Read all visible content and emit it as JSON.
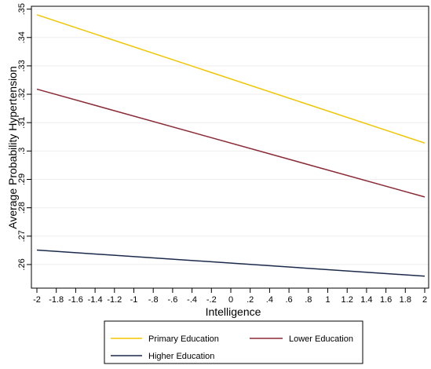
{
  "chart_data": {
    "type": "line",
    "title": "",
    "xlabel": "Intelligence",
    "ylabel": "Average Probability Hypertension",
    "xlim": [
      -2,
      2
    ],
    "ylim": [
      0.255,
      0.351
    ],
    "x_ticks": [
      -2,
      -1.8,
      -1.6,
      -1.4,
      -1.2,
      -1,
      -0.8,
      -0.6,
      -0.4,
      -0.2,
      0,
      0.2,
      0.4,
      0.6,
      0.8,
      1,
      1.2,
      1.4,
      1.6,
      1.8,
      2
    ],
    "x_tick_labels": [
      "-2",
      "-1.8",
      "-1.6",
      "-1.4",
      "-1.2",
      "-1",
      "-.8",
      "-.6",
      "-.4",
      "-.2",
      "0",
      ".2",
      ".4",
      ".6",
      ".8",
      "1",
      "1.2",
      "1.4",
      "1.6",
      "1.8",
      "2"
    ],
    "y_ticks": [
      0.26,
      0.27,
      0.28,
      0.29,
      0.3,
      0.31,
      0.32,
      0.33,
      0.34,
      0.35
    ],
    "y_tick_labels": [
      ".26",
      ".27",
      ".28",
      ".29",
      ".3",
      ".31",
      ".32",
      ".33",
      ".34",
      ".35"
    ],
    "grid": true,
    "legend_position": "bottom",
    "series": [
      {
        "name": "Primary Education",
        "color": "#f2c500",
        "x": [
          -2,
          2
        ],
        "y": [
          0.348,
          0.3028
        ]
      },
      {
        "name": "Lower Education",
        "color": "#8b2a35",
        "x": [
          -2,
          2
        ],
        "y": [
          0.3218,
          0.2838
        ]
      },
      {
        "name": "Higher Education",
        "color": "#1b2a4a",
        "x": [
          -2,
          2
        ],
        "y": [
          0.2651,
          0.2559
        ]
      }
    ]
  }
}
